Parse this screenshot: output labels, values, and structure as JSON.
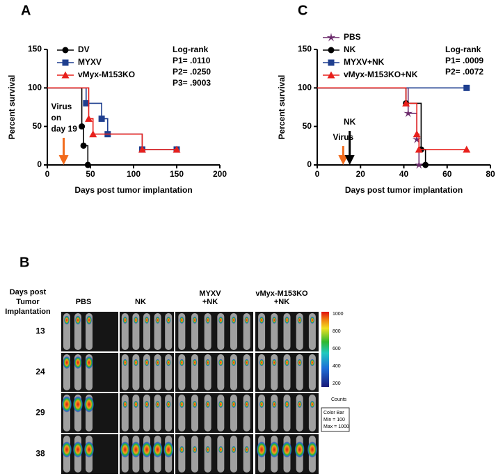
{
  "chart_data": [
    {
      "type": "step",
      "title": "A",
      "xlabel": "Days post tumor implantation",
      "ylabel": "Percent survival",
      "xlim": [
        0,
        200
      ],
      "xticks": [
        0,
        50,
        100,
        150,
        200
      ],
      "ylim": [
        0,
        150
      ],
      "yticks": [
        0,
        50,
        100,
        150
      ],
      "series": [
        {
          "name": "DV",
          "color": "#000000",
          "marker": "circle",
          "x": [
            0,
            40,
            42,
            47
          ],
          "values": [
            100,
            50,
            25,
            0
          ]
        },
        {
          "name": "MYXV",
          "color": "#1f3f8f",
          "marker": "square",
          "x": [
            0,
            45,
            63,
            70,
            110,
            150
          ],
          "values": [
            100,
            80,
            60,
            40,
            20,
            20
          ]
        },
        {
          "name": "vMyx-M153KO",
          "color": "#e8201c",
          "marker": "triangle",
          "x": [
            0,
            48,
            53,
            110,
            150
          ],
          "values": [
            100,
            60,
            40,
            20,
            20
          ]
        }
      ],
      "stats": [
        "Log-rank",
        "P1= .0110",
        "P2= .0250",
        "P3= .9003"
      ],
      "arrows": [
        {
          "label": [
            "Virus",
            "on",
            "day 19"
          ],
          "x": 19,
          "color": "#f26a1b"
        }
      ]
    },
    {
      "type": "step",
      "title": "C",
      "xlabel": "Days post tumor implantation",
      "ylabel": "Percent survival",
      "xlim": [
        0,
        80
      ],
      "xticks": [
        0,
        20,
        40,
        60,
        80
      ],
      "ylim": [
        0,
        150
      ],
      "yticks": [
        0,
        50,
        100,
        150
      ],
      "series": [
        {
          "name": "PBS",
          "color": "#6b2a6b",
          "marker": "star",
          "x": [
            0,
            42,
            46,
            47
          ],
          "values": [
            100,
            67,
            33,
            0
          ]
        },
        {
          "name": "NK",
          "color": "#000000",
          "marker": "circle",
          "x": [
            0,
            41,
            48,
            50
          ],
          "values": [
            100,
            80,
            20,
            0
          ]
        },
        {
          "name": "MYXV+NK",
          "color": "#1f3f8f",
          "marker": "square",
          "x": [
            0,
            69
          ],
          "values": [
            100,
            100
          ]
        },
        {
          "name": "vMyx-M153KO+NK",
          "color": "#e8201c",
          "marker": "triangle",
          "x": [
            0,
            41,
            46,
            47,
            69
          ],
          "values": [
            100,
            80,
            40,
            20,
            20
          ]
        }
      ],
      "stats": [
        "Log-rank",
        "P1= .0009",
        "P2= .0072"
      ],
      "arrows": [
        {
          "label": [
            "Virus"
          ],
          "x": 12,
          "color": "#f26a1b"
        },
        {
          "label": [
            "NK"
          ],
          "x": 15,
          "color": "#000000"
        }
      ]
    }
  ],
  "panel_b": {
    "title": "B",
    "row_header": [
      "Days post",
      "Tumor",
      "Implantation"
    ],
    "columns": [
      [
        "PBS"
      ],
      [
        "NK"
      ],
      [
        "MYXV",
        "+NK"
      ],
      [
        "vMyx-M153KO",
        "+NK"
      ]
    ],
    "rows": [
      "13",
      "24",
      "29",
      "38"
    ],
    "colorbar_ticks": [
      "1000",
      "800",
      "600",
      "400",
      "200"
    ],
    "colorbar_unit": "Counts",
    "colorbar_box": [
      "Color Bar",
      "Min = 100",
      "Max = 1000"
    ]
  }
}
